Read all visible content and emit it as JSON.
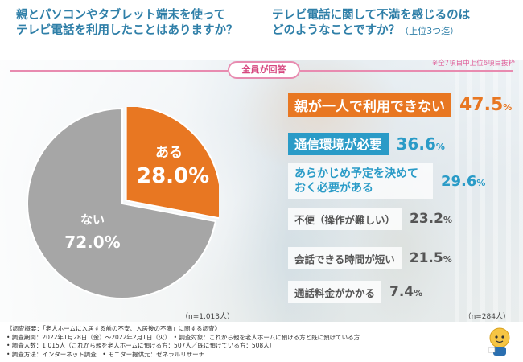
{
  "left_question": [
    "親とパソコンやタブレット端末を使って",
    "テレビ電話を利用したことはありますか？"
  ],
  "right_question": {
    "line1": "テレビ電話に関して不満を感じるのは",
    "line2": "どのようなことですか？",
    "sub": "（上位3つ迄）"
  },
  "badge": "全員が回答",
  "note_top": "※全7項目中上位6項目抜粋",
  "n_left": "（n=1,013人）",
  "n_right": "（n=284人）",
  "chart_data": [
    {
      "type": "pie",
      "title": "親とパソコンやタブレット端末を使ってテレビ電話を利用したことはありますか？",
      "slices": [
        {
          "label": "ある",
          "value": 28.0,
          "display": "28.0%",
          "color": "#e87722"
        },
        {
          "label": "ない",
          "value": 72.0,
          "display": "72.0%",
          "color": "#a6a6a6"
        }
      ]
    },
    {
      "type": "bar",
      "title": "テレビ電話に関して不満を感じるのはどのようなことですか？（上位3つ迄）",
      "categories": [
        "親が一人で利用できない",
        "通信環境が必要",
        "あらかじめ予定を決めておく必要がある",
        "不便（操作が難しい）",
        "会話できる時間が短い",
        "通話料金がかかる"
      ],
      "values": [
        47.5,
        36.6,
        29.6,
        23.2,
        21.5,
        7.4
      ],
      "labels": [
        "47.5",
        "36.6",
        "29.6",
        "23.2",
        "21.5",
        "7.4"
      ],
      "unit": "%"
    }
  ],
  "footer": [
    "《調査概要：「老人ホームに入居する前の不安、入居後の不満」に関する調査》",
    "• 調査期間：2022年1月28日（金）～2022年2月1日（火）　• 調査対象：これから親を老人ホームに預ける方と既に預けている方",
    "• 調査人数：1,015人（これから親を老人ホームに預ける方：507人／既に預けている方：508人）",
    "• 調査方法：インターネット調査　• モニター提供元：ゼネラルリサーチ"
  ]
}
